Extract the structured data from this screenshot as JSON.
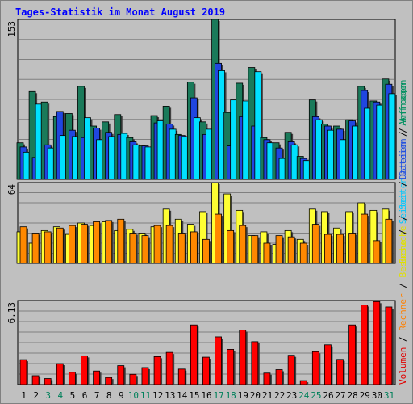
{
  "header": {
    "title": "Tages-Statistik im Monat August 2019"
  },
  "chart_data": [
    {
      "type": "bar",
      "panel": "top",
      "y_max_label": "153",
      "ylim": [
        0,
        153
      ],
      "grid": true,
      "side_legend": [
        {
          "name": "Dateien",
          "color": "#2050e0"
        },
        {
          "name": "Anfragen",
          "color": "#009060"
        }
      ],
      "series": [
        {
          "name": "Anfragen",
          "color": "#1a7a5a",
          "values": [
            35,
            84,
            74,
            60,
            63,
            89,
            51,
            55,
            62,
            40,
            32,
            61,
            70,
            43,
            93,
            55,
            153,
            64,
            92,
            107,
            40,
            35,
            45,
            22,
            76,
            53,
            51,
            57,
            89,
            75,
            96
          ]
        },
        {
          "name": "Dateien",
          "color": "#2046e0",
          "values": [
            31,
            21,
            33,
            65,
            47,
            40,
            49,
            45,
            43,
            36,
            32,
            54,
            53,
            42,
            78,
            43,
            111,
            32,
            60,
            51,
            38,
            30,
            36,
            20,
            60,
            51,
            48,
            56,
            85,
            74,
            91
          ]
        },
        {
          "name": "Seiten",
          "color": "#00e0ff",
          "values": [
            26,
            72,
            30,
            42,
            41,
            59,
            38,
            41,
            44,
            33,
            31,
            56,
            48,
            41,
            59,
            48,
            104,
            76,
            75,
            103,
            35,
            20,
            33,
            18,
            57,
            47,
            38,
            51,
            68,
            71,
            82
          ]
        }
      ]
    },
    {
      "type": "bar",
      "panel": "middle",
      "y_max_label": "64",
      "ylim": [
        0,
        64
      ],
      "grid": true,
      "side_legend": [
        {
          "name": "Besuche",
          "color": "#e0e000"
        },
        {
          "name": "Seiten",
          "color": "#00c8ff"
        }
      ],
      "series": [
        {
          "name": "Besuche",
          "color": "#ffff33",
          "values": [
            25,
            16,
            26,
            29,
            23,
            32,
            30,
            33,
            26,
            27,
            24,
            29,
            43,
            35,
            31,
            41,
            64,
            55,
            42,
            22,
            25,
            15,
            26,
            19,
            43,
            41,
            28,
            41,
            48,
            42,
            43
          ]
        },
        {
          "name": "Rechner",
          "color": "#ff8800",
          "values": [
            29,
            24,
            25,
            28,
            30,
            31,
            33,
            34,
            35,
            24,
            22,
            30,
            30,
            24,
            25,
            19,
            39,
            26,
            30,
            22,
            16,
            22,
            21,
            16,
            31,
            23,
            23,
            24,
            39,
            18,
            35
          ]
        }
      ]
    },
    {
      "type": "bar",
      "panel": "bottom",
      "y_max_label": "6.13",
      "ylim": [
        0,
        6.13
      ],
      "grid": true,
      "side_legend": [
        {
          "name": "Volumen",
          "color": "#e00000"
        },
        {
          "name": "Rechner",
          "color": "#ff8000"
        },
        {
          "name": "Besuche",
          "color": "#e0e000"
        },
        {
          "name": "Seiten",
          "color": "#00c8ff"
        },
        {
          "name": "Dateien",
          "color": "#2050e0"
        },
        {
          "name": "Anfragen",
          "color": "#009060"
        }
      ],
      "series": [
        {
          "name": "Volumen",
          "color": "#ff0000",
          "values": [
            1.82,
            0.65,
            0.44,
            1.53,
            0.9,
            2.1,
            0.99,
            0.52,
            1.38,
            0.75,
            1.24,
            2.04,
            2.35,
            1.13,
            4.35,
            2.0,
            3.48,
            2.57,
            3.98,
            3.13,
            0.84,
            1.09,
            2.14,
            0.29,
            2.4,
            2.9,
            1.84,
            4.35,
            5.81,
            6.05,
            5.66
          ]
        }
      ]
    }
  ],
  "x_axis": {
    "labels": [
      "1",
      "2",
      "3",
      "4",
      "5",
      "6",
      "7",
      "8",
      "9",
      "10",
      "11",
      "12",
      "13",
      "14",
      "15",
      "16",
      "17",
      "18",
      "19",
      "20",
      "21",
      "22",
      "23",
      "24",
      "25",
      "26",
      "27",
      "28",
      "29",
      "30",
      "31"
    ],
    "weekend_days": [
      3,
      4,
      10,
      11,
      17,
      18,
      24,
      25,
      31
    ],
    "weekday_color": "#000000",
    "weekend_color": "#00805a"
  },
  "separator": " / "
}
